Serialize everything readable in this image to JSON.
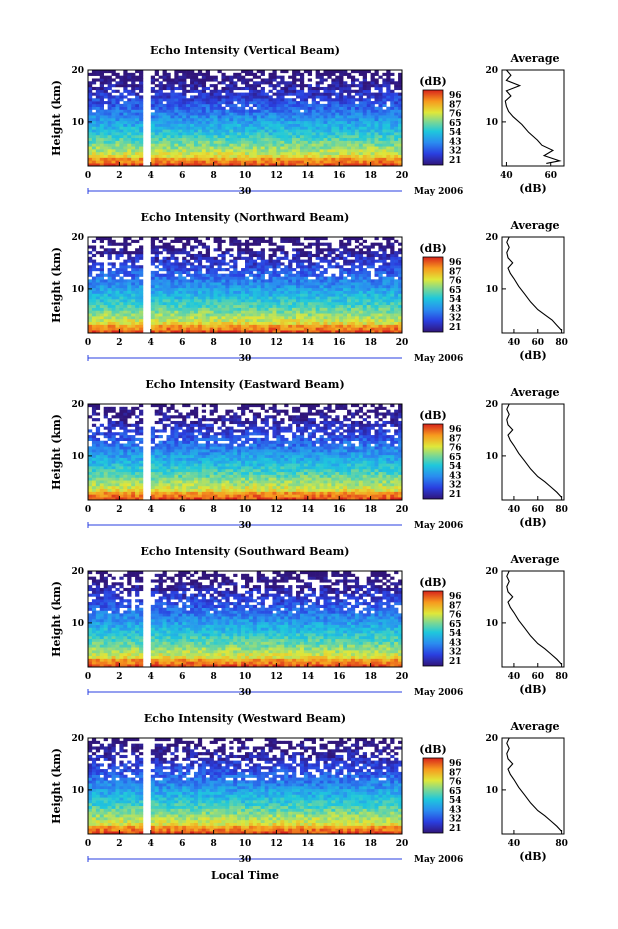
{
  "figure": {
    "xlabel": "Local Time",
    "date_label": "May 2006",
    "day_label": "30",
    "avg_title": "Average",
    "avg_xlabel": "(dB)",
    "cbar_unit": "(dB)"
  },
  "chart_data": [
    {
      "type": "heatmap",
      "title": "Echo Intensity (Vertical Beam)",
      "xlabel": "Local Time",
      "ylabel": "Height (km)",
      "xlim": [
        0,
        20
      ],
      "ylim": [
        1.5,
        20
      ],
      "x_ticks": [
        "0",
        "2",
        "4",
        "6",
        "8",
        "10",
        "12",
        "14",
        "16",
        "18",
        "20"
      ],
      "y_ticks": [
        "20",
        "10"
      ],
      "colorbar": {
        "unit": "(dB)",
        "ticks": [
          "96",
          "87",
          "76",
          "65",
          "54",
          "43",
          "32",
          "21"
        ],
        "range": [
          21,
          96
        ]
      },
      "data_gap_hours": [
        3.6,
        4.0
      ],
      "average_profile": {
        "title": "Average",
        "xlabel": "(dB)",
        "xlim": [
          38,
          66
        ],
        "x_ticks": [
          "40",
          "60"
        ],
        "y_ticks": [
          "20",
          "10"
        ],
        "points": [
          [
            58,
            2
          ],
          [
            64,
            2.5
          ],
          [
            57,
            3.5
          ],
          [
            61,
            4.5
          ],
          [
            56,
            5.5
          ],
          [
            54,
            6.5
          ],
          [
            50,
            8
          ],
          [
            47,
            9.5
          ],
          [
            43,
            11
          ],
          [
            41,
            12
          ],
          [
            40,
            13
          ],
          [
            39.5,
            14
          ],
          [
            42,
            15
          ],
          [
            40,
            16
          ],
          [
            46,
            17
          ],
          [
            40,
            18
          ],
          [
            42,
            19
          ],
          [
            40,
            20
          ]
        ]
      }
    },
    {
      "type": "heatmap",
      "title": "Echo Intensity (Northward Beam)",
      "xlabel": "Local Time",
      "ylabel": "Height (km)",
      "xlim": [
        0,
        20
      ],
      "ylim": [
        1.5,
        20
      ],
      "x_ticks": [
        "0",
        "2",
        "4",
        "6",
        "8",
        "10",
        "12",
        "14",
        "16",
        "18",
        "20"
      ],
      "y_ticks": [
        "20",
        "10"
      ],
      "colorbar": {
        "unit": "(dB)",
        "ticks": [
          "96",
          "87",
          "76",
          "65",
          "54",
          "43",
          "32",
          "21"
        ],
        "range": [
          21,
          96
        ]
      },
      "data_gap_hours": [
        3.6,
        4.0
      ],
      "average_profile": {
        "title": "Average",
        "xlabel": "(dB)",
        "xlim": [
          30,
          82
        ],
        "x_ticks": [
          "40",
          "60",
          "80"
        ],
        "y_ticks": [
          "20",
          "10"
        ],
        "points": [
          [
            80,
            2
          ],
          [
            76,
            3
          ],
          [
            72,
            4
          ],
          [
            66,
            5
          ],
          [
            60,
            6
          ],
          [
            54,
            7.5
          ],
          [
            49,
            9
          ],
          [
            44,
            10.5
          ],
          [
            40,
            12
          ],
          [
            37,
            13
          ],
          [
            35,
            14
          ],
          [
            39,
            15
          ],
          [
            35,
            16
          ],
          [
            34,
            17
          ],
          [
            36,
            18
          ],
          [
            34,
            19
          ],
          [
            36,
            20
          ]
        ]
      }
    },
    {
      "type": "heatmap",
      "title": "Echo Intensity (Eastward Beam)",
      "xlabel": "Local Time",
      "ylabel": "Height (km)",
      "xlim": [
        0,
        20
      ],
      "ylim": [
        1.5,
        20
      ],
      "x_ticks": [
        "0",
        "2",
        "4",
        "6",
        "8",
        "10",
        "12",
        "14",
        "16",
        "18",
        "20"
      ],
      "y_ticks": [
        "20",
        "10"
      ],
      "colorbar": {
        "unit": "(dB)",
        "ticks": [
          "96",
          "87",
          "76",
          "65",
          "54",
          "43",
          "32",
          "21"
        ],
        "range": [
          21,
          96
        ]
      },
      "data_gap_hours": [
        3.6,
        4.0
      ],
      "average_profile": {
        "title": "Average",
        "xlabel": "(dB)",
        "xlim": [
          30,
          82
        ],
        "x_ticks": [
          "40",
          "60",
          "80"
        ],
        "y_ticks": [
          "20",
          "10"
        ],
        "points": [
          [
            80,
            2
          ],
          [
            76,
            3
          ],
          [
            71,
            4
          ],
          [
            66,
            5
          ],
          [
            60,
            6
          ],
          [
            54,
            7.5
          ],
          [
            49,
            9
          ],
          [
            44,
            10.5
          ],
          [
            40,
            12
          ],
          [
            37,
            13
          ],
          [
            35,
            14
          ],
          [
            39,
            15
          ],
          [
            35,
            16
          ],
          [
            34,
            17
          ],
          [
            36,
            18
          ],
          [
            34,
            19
          ],
          [
            36,
            20
          ]
        ]
      }
    },
    {
      "type": "heatmap",
      "title": "Echo Intensity (Southward Beam)",
      "xlabel": "Local Time",
      "ylabel": "Height (km)",
      "xlim": [
        0,
        20
      ],
      "ylim": [
        1.5,
        20
      ],
      "x_ticks": [
        "0",
        "2",
        "4",
        "6",
        "8",
        "10",
        "12",
        "14",
        "16",
        "18",
        "20"
      ],
      "y_ticks": [
        "20",
        "10"
      ],
      "colorbar": {
        "unit": "(dB)",
        "ticks": [
          "96",
          "87",
          "76",
          "65",
          "54",
          "43",
          "32",
          "21"
        ],
        "range": [
          21,
          96
        ]
      },
      "data_gap_hours": [
        3.6,
        4.0
      ],
      "average_profile": {
        "title": "Average",
        "xlabel": "(dB)",
        "xlim": [
          30,
          82
        ],
        "x_ticks": [
          "40",
          "60",
          "80"
        ],
        "y_ticks": [
          "20",
          "10"
        ],
        "points": [
          [
            80,
            2
          ],
          [
            76,
            3
          ],
          [
            71,
            4
          ],
          [
            66,
            5
          ],
          [
            60,
            6
          ],
          [
            54,
            7.5
          ],
          [
            49,
            9
          ],
          [
            44,
            10.5
          ],
          [
            40,
            12
          ],
          [
            37,
            13
          ],
          [
            35,
            14
          ],
          [
            39,
            15
          ],
          [
            35,
            16
          ],
          [
            34,
            17
          ],
          [
            36,
            18
          ],
          [
            34,
            19
          ],
          [
            36,
            20
          ]
        ]
      }
    },
    {
      "type": "heatmap",
      "title": "Echo Intensity (Westward Beam)",
      "xlabel": "Local Time",
      "ylabel": "Height (km)",
      "xlim": [
        0,
        20
      ],
      "ylim": [
        1.5,
        20
      ],
      "x_ticks": [
        "0",
        "2",
        "4",
        "6",
        "8",
        "10",
        "12",
        "14",
        "16",
        "18",
        "20"
      ],
      "y_ticks": [
        "20",
        "10"
      ],
      "colorbar": {
        "unit": "(dB)",
        "ticks": [
          "96",
          "87",
          "76",
          "65",
          "54",
          "43",
          "32",
          "21"
        ],
        "range": [
          21,
          96
        ]
      },
      "data_gap_hours": [
        3.6,
        4.0
      ],
      "average_profile": {
        "title": "Average",
        "xlabel": "(dB)",
        "xlim": [
          30,
          82
        ],
        "x_ticks": [
          "40",
          "80"
        ],
        "y_ticks": [
          "20",
          "10"
        ],
        "points": [
          [
            80,
            2
          ],
          [
            76,
            3
          ],
          [
            71,
            4
          ],
          [
            66,
            5
          ],
          [
            60,
            6
          ],
          [
            54,
            7.5
          ],
          [
            49,
            9
          ],
          [
            44,
            10.5
          ],
          [
            40,
            12
          ],
          [
            37,
            13
          ],
          [
            35,
            14
          ],
          [
            39,
            15
          ],
          [
            35,
            16
          ],
          [
            34,
            17
          ],
          [
            36,
            18
          ],
          [
            34,
            19
          ],
          [
            36,
            20
          ]
        ]
      }
    }
  ]
}
